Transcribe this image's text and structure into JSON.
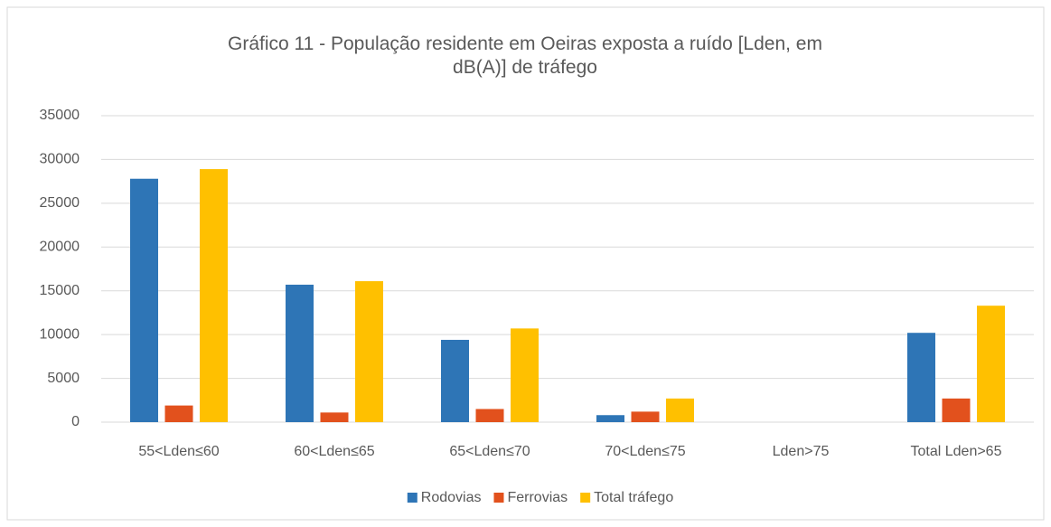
{
  "chart_data": {
    "type": "bar",
    "title": "Gráfico 11 - População residente em Oeiras exposta a ruído [Lden, em dB(A)] de tráfego",
    "categories": [
      "55<Lden≤60",
      "60<Lden≤65",
      "65<Lden≤70",
      "70<Lden≤75",
      "Lden>75",
      "Total Lden>65"
    ],
    "series": [
      {
        "name": "Rodovias",
        "color": "#2e75b6",
        "values": [
          27800,
          15700,
          9400,
          800,
          0,
          10200
        ]
      },
      {
        "name": "Ferrovias",
        "color": "#e2511d",
        "values": [
          1900,
          1100,
          1500,
          1200,
          0,
          2700
        ]
      },
      {
        "name": "Total tráfego",
        "color": "#ffc000",
        "values": [
          28900,
          16100,
          10700,
          2700,
          0,
          13300
        ]
      }
    ],
    "ylim": [
      0,
      35000
    ],
    "yticks": [
      0,
      5000,
      10000,
      15000,
      20000,
      25000,
      30000,
      35000
    ],
    "grid": true,
    "legend": "bottom"
  }
}
